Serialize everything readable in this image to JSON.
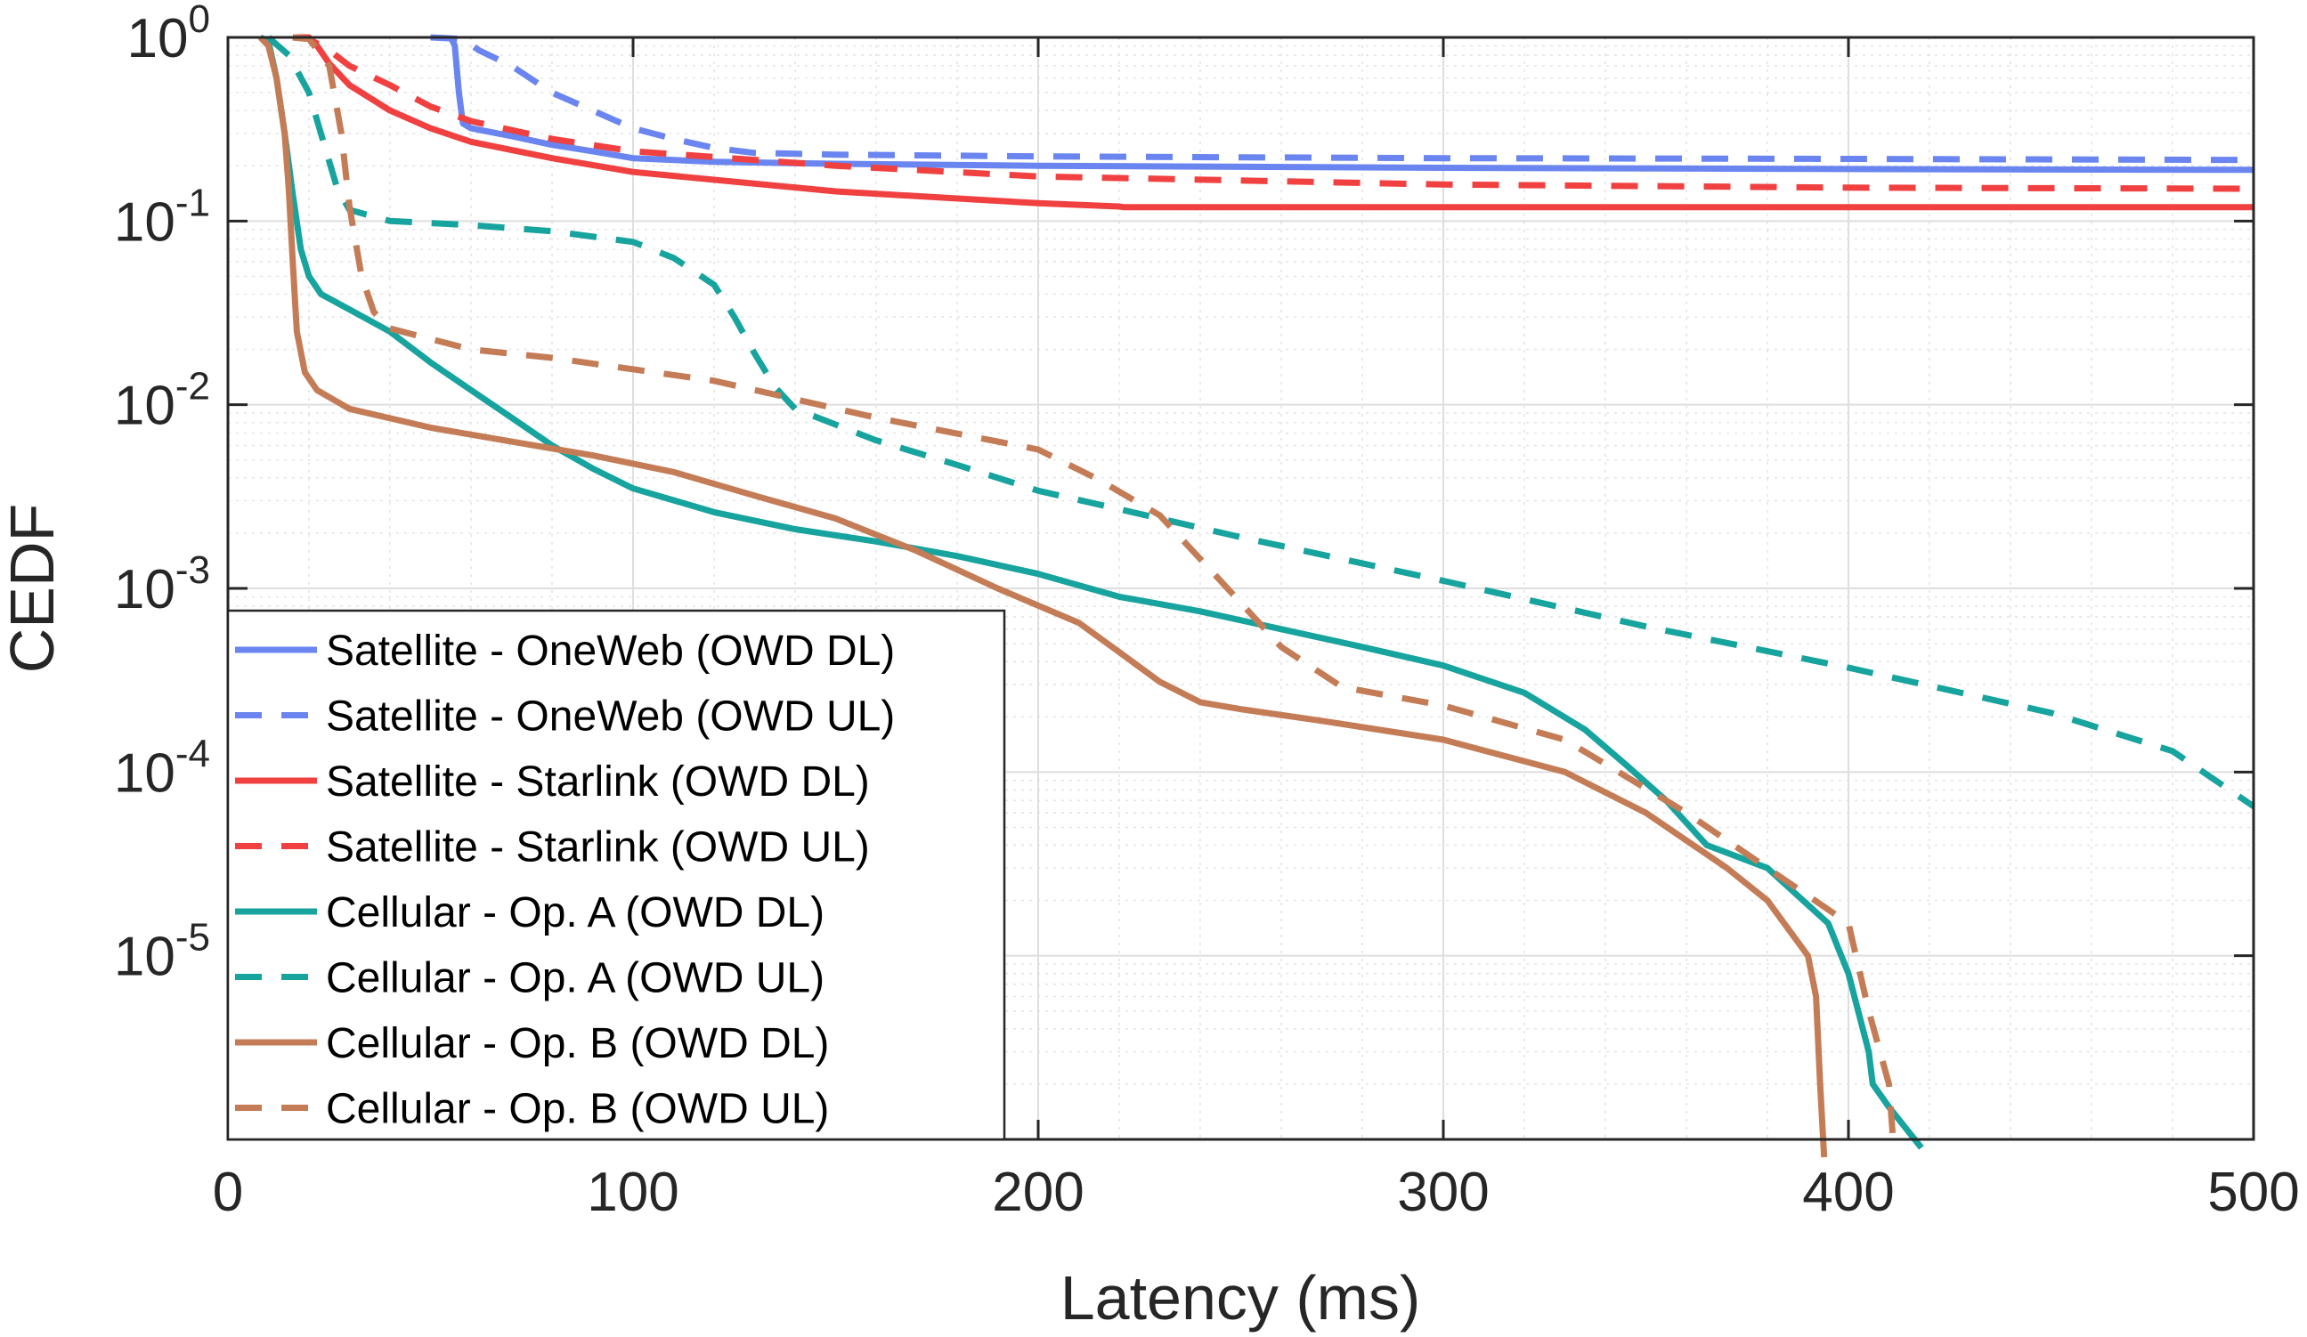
{
  "chart_data": {
    "type": "line",
    "title": "",
    "xlabel": "Latency (ms)",
    "ylabel": "CEDF",
    "xlim": [
      0,
      500
    ],
    "ylim_log10": [
      -6.0,
      0
    ],
    "yscale": "log",
    "grid": true,
    "legend_position": "bottom-left",
    "x_ticks": [
      {
        "value": 0,
        "label": "0"
      },
      {
        "value": 100,
        "label": "100"
      },
      {
        "value": 200,
        "label": "200"
      },
      {
        "value": 300,
        "label": "300"
      },
      {
        "value": 400,
        "label": "400"
      },
      {
        "value": 500,
        "label": "500"
      }
    ],
    "y_ticks": [
      {
        "exp": 0,
        "base": "10",
        "sup": "0"
      },
      {
        "exp": -1,
        "base": "10",
        "sup": "-1"
      },
      {
        "exp": -2,
        "base": "10",
        "sup": "-2"
      },
      {
        "exp": -3,
        "base": "10",
        "sup": "-3"
      },
      {
        "exp": -4,
        "base": "10",
        "sup": "-4"
      },
      {
        "exp": -5,
        "base": "10",
        "sup": "-5"
      }
    ],
    "series": [
      {
        "name": "Satellite - OneWeb (OWD DL)",
        "color": "#6a85f0",
        "dashed": false,
        "points": [
          [
            55,
            1.0
          ],
          [
            56,
            0.9
          ],
          [
            57,
            0.5
          ],
          [
            58,
            0.34
          ],
          [
            60,
            0.32
          ],
          [
            70,
            0.29
          ],
          [
            80,
            0.26
          ],
          [
            90,
            0.24
          ],
          [
            100,
            0.22
          ],
          [
            120,
            0.21
          ],
          [
            150,
            0.205
          ],
          [
            200,
            0.2
          ],
          [
            300,
            0.195
          ],
          [
            400,
            0.192
          ],
          [
            500,
            0.19
          ]
        ]
      },
      {
        "name": "Satellite - OneWeb (OWD UL)",
        "color": "#6a85f0",
        "dashed": true,
        "points": [
          [
            50,
            1.0
          ],
          [
            58,
            0.98
          ],
          [
            62,
            0.85
          ],
          [
            70,
            0.7
          ],
          [
            80,
            0.5
          ],
          [
            90,
            0.4
          ],
          [
            100,
            0.32
          ],
          [
            110,
            0.28
          ],
          [
            120,
            0.25
          ],
          [
            130,
            0.235
          ],
          [
            150,
            0.23
          ],
          [
            200,
            0.225
          ],
          [
            300,
            0.22
          ],
          [
            400,
            0.218
          ],
          [
            500,
            0.215
          ]
        ]
      },
      {
        "name": "Satellite - Starlink (OWD DL)",
        "color": "#f04040",
        "dashed": false,
        "points": [
          [
            17,
            1.0
          ],
          [
            20,
            1.0
          ],
          [
            22,
            0.9
          ],
          [
            25,
            0.72
          ],
          [
            30,
            0.55
          ],
          [
            40,
            0.4
          ],
          [
            50,
            0.32
          ],
          [
            60,
            0.27
          ],
          [
            80,
            0.22
          ],
          [
            100,
            0.185
          ],
          [
            150,
            0.145
          ],
          [
            200,
            0.125
          ],
          [
            220,
            0.12
          ],
          [
            221,
            0.119
          ],
          [
            300,
            0.119
          ],
          [
            400,
            0.119
          ],
          [
            500,
            0.119
          ]
        ]
      },
      {
        "name": "Satellite - Starlink (OWD UL)",
        "color": "#f04040",
        "dashed": true,
        "points": [
          [
            16,
            1.0
          ],
          [
            20,
            0.98
          ],
          [
            25,
            0.85
          ],
          [
            30,
            0.7
          ],
          [
            40,
            0.55
          ],
          [
            50,
            0.42
          ],
          [
            60,
            0.35
          ],
          [
            80,
            0.28
          ],
          [
            100,
            0.24
          ],
          [
            150,
            0.2
          ],
          [
            200,
            0.175
          ],
          [
            300,
            0.158
          ],
          [
            400,
            0.152
          ],
          [
            500,
            0.15
          ]
        ]
      },
      {
        "name": "Cellular - Op. A (OWD DL)",
        "color": "#17a39e",
        "dashed": false,
        "points": [
          [
            8,
            1.0
          ],
          [
            10,
            0.95
          ],
          [
            12,
            0.6
          ],
          [
            14,
            0.3
          ],
          [
            16,
            0.14
          ],
          [
            18,
            0.07
          ],
          [
            20,
            0.05
          ],
          [
            23,
            0.04
          ],
          [
            30,
            0.033
          ],
          [
            40,
            0.025
          ],
          [
            50,
            0.017
          ],
          [
            60,
            0.012
          ],
          [
            70,
            0.0085
          ],
          [
            80,
            0.006
          ],
          [
            90,
            0.0045
          ],
          [
            100,
            0.0035
          ],
          [
            120,
            0.0026
          ],
          [
            140,
            0.0021
          ],
          [
            160,
            0.0018
          ],
          [
            180,
            0.0015
          ],
          [
            200,
            0.0012
          ],
          [
            220,
            0.0009
          ],
          [
            240,
            0.00075
          ],
          [
            260,
            0.0006
          ],
          [
            280,
            0.00048
          ],
          [
            300,
            0.00038
          ],
          [
            320,
            0.00027
          ],
          [
            335,
            0.00017
          ],
          [
            345,
            0.00011
          ],
          [
            355,
            7e-05
          ],
          [
            365,
            4e-05
          ],
          [
            380,
            3e-05
          ],
          [
            395,
            1.5e-05
          ],
          [
            400,
            8e-06
          ],
          [
            405,
            3e-06
          ],
          [
            406,
            2e-06
          ],
          [
            410,
            1.5e-06
          ],
          [
            418,
            9e-07
          ]
        ]
      },
      {
        "name": "Cellular - Op. A (OWD UL)",
        "color": "#17a39e",
        "dashed": true,
        "points": [
          [
            10,
            1.0
          ],
          [
            15,
            0.8
          ],
          [
            20,
            0.5
          ],
          [
            24,
            0.25
          ],
          [
            27,
            0.15
          ],
          [
            30,
            0.115
          ],
          [
            40,
            0.1
          ],
          [
            60,
            0.095
          ],
          [
            80,
            0.088
          ],
          [
            100,
            0.077
          ],
          [
            110,
            0.063
          ],
          [
            120,
            0.045
          ],
          [
            125,
            0.03
          ],
          [
            130,
            0.019
          ],
          [
            135,
            0.0125
          ],
          [
            140,
            0.0095
          ],
          [
            160,
            0.0064
          ],
          [
            180,
            0.0047
          ],
          [
            200,
            0.0034
          ],
          [
            220,
            0.0027
          ],
          [
            250,
            0.0019
          ],
          [
            300,
            0.0011
          ],
          [
            350,
            0.00062
          ],
          [
            400,
            0.00037
          ],
          [
            450,
            0.00021
          ],
          [
            480,
            0.00013
          ],
          [
            500,
            6.5e-05
          ]
        ]
      },
      {
        "name": "Cellular - Op. B (OWD DL)",
        "color": "#c47c56",
        "dashed": false,
        "points": [
          [
            8,
            1.0
          ],
          [
            10,
            0.9
          ],
          [
            12,
            0.6
          ],
          [
            14,
            0.3
          ],
          [
            15,
            0.15
          ],
          [
            16,
            0.06
          ],
          [
            17,
            0.025
          ],
          [
            19,
            0.015
          ],
          [
            22,
            0.012
          ],
          [
            30,
            0.0095
          ],
          [
            50,
            0.0075
          ],
          [
            70,
            0.0063
          ],
          [
            90,
            0.0053
          ],
          [
            110,
            0.0043
          ],
          [
            130,
            0.0032
          ],
          [
            150,
            0.0024
          ],
          [
            170,
            0.0016
          ],
          [
            190,
            0.001
          ],
          [
            210,
            0.00065
          ],
          [
            220,
            0.00045
          ],
          [
            230,
            0.00031
          ],
          [
            240,
            0.00024
          ],
          [
            250,
            0.00022
          ],
          [
            270,
            0.00019
          ],
          [
            300,
            0.00015
          ],
          [
            330,
            0.0001
          ],
          [
            350,
            6e-05
          ],
          [
            370,
            3e-05
          ],
          [
            380,
            2e-05
          ],
          [
            390,
            1e-05
          ],
          [
            392,
            6e-06
          ],
          [
            393,
            2e-06
          ],
          [
            394,
            8e-07
          ]
        ]
      },
      {
        "name": "Cellular - Op. B (OWD UL)",
        "color": "#c47c56",
        "dashed": true,
        "points": [
          [
            16,
            1.0
          ],
          [
            20,
            0.98
          ],
          [
            25,
            0.7
          ],
          [
            28,
            0.3
          ],
          [
            30,
            0.12
          ],
          [
            33,
            0.05
          ],
          [
            36,
            0.032
          ],
          [
            40,
            0.026
          ],
          [
            60,
            0.02
          ],
          [
            80,
            0.018
          ],
          [
            120,
            0.0135
          ],
          [
            160,
            0.0085
          ],
          [
            200,
            0.0057
          ],
          [
            215,
            0.0039
          ],
          [
            230,
            0.0025
          ],
          [
            245,
            0.0011
          ],
          [
            260,
            0.00048
          ],
          [
            275,
            0.00029
          ],
          [
            300,
            0.00023
          ],
          [
            330,
            0.00015
          ],
          [
            360,
            6e-05
          ],
          [
            380,
            3e-05
          ],
          [
            400,
            1.5e-05
          ],
          [
            405,
            5e-06
          ],
          [
            410,
            2e-06
          ],
          [
            411,
            1e-06
          ]
        ]
      }
    ]
  }
}
